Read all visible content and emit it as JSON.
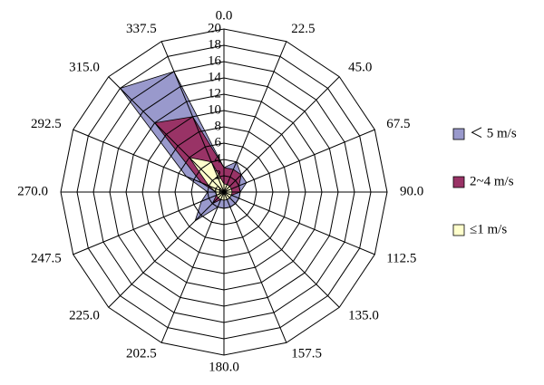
{
  "chart_data": {
    "type": "radar",
    "categories": [
      "0.0",
      "22.5",
      "45.0",
      "67.5",
      "90.0",
      "112.5",
      "135.0",
      "157.5",
      "180.0",
      "202.5",
      "225.0",
      "247.5",
      "270.0",
      "292.5",
      "315.0",
      "337.5"
    ],
    "rlim": [
      0,
      20
    ],
    "rticks": [
      0,
      2,
      4,
      6,
      8,
      10,
      12,
      14,
      16,
      18,
      20
    ],
    "grid": true,
    "legend": "right",
    "series": [
      {
        "name": "＜ 5 m/s",
        "color": "#9999cc",
        "values": [
          3,
          4,
          3,
          3,
          2,
          2,
          2,
          2,
          2,
          2,
          5,
          3,
          2,
          5,
          18,
          16
        ]
      },
      {
        "name": "2~4 m/s",
        "color": "#993366",
        "values": [
          3,
          3,
          3,
          2,
          2,
          1,
          1,
          1,
          1,
          1,
          2,
          1,
          1,
          3,
          12,
          10
        ]
      },
      {
        "name": "≤1 m/s",
        "color": "#ffffcc",
        "values": [
          1,
          1,
          1,
          1,
          1,
          1,
          1,
          1,
          1,
          1,
          1,
          1,
          1,
          2,
          6,
          4
        ]
      }
    ]
  }
}
